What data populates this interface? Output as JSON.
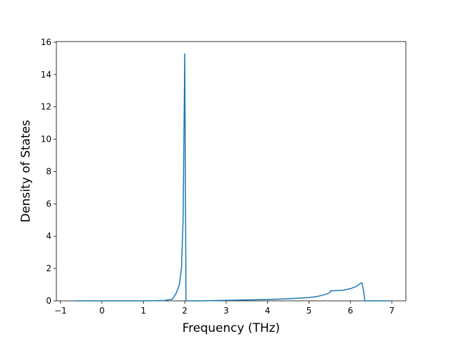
{
  "chart_data": {
    "type": "line",
    "x_label": "Frequency (THz)",
    "y_label": "Density of States",
    "xlim": [
      -1.1,
      7.34
    ],
    "ylim": [
      0,
      16.04
    ],
    "xticks": [
      {
        "value": -1,
        "label": "−1"
      },
      0,
      1,
      2,
      3,
      4,
      5,
      6,
      7
    ],
    "yticks": [
      0,
      2,
      4,
      6,
      8,
      10,
      12,
      14,
      16
    ],
    "series": [
      {
        "name": "DOS",
        "color": "#1f77b4",
        "x": [
          -0.65,
          0,
          1,
          1.5,
          1.7,
          1.8,
          1.87,
          1.92,
          1.96,
          2.0,
          2.03,
          2.05,
          2.4,
          3,
          4,
          4.5,
          5,
          5.2,
          5.4,
          5.5,
          5.52,
          5.8,
          6.0,
          6.15,
          6.25,
          6.28,
          6.32,
          6.35,
          6.95
        ],
        "values": [
          0,
          0,
          0,
          0.02,
          0.1,
          0.5,
          1,
          2,
          5,
          15.3,
          0,
          0,
          0,
          0.03,
          0.08,
          0.13,
          0.2,
          0.27,
          0.4,
          0.5,
          0.62,
          0.65,
          0.75,
          0.9,
          1.1,
          1.1,
          0.6,
          0,
          0
        ]
      }
    ]
  }
}
